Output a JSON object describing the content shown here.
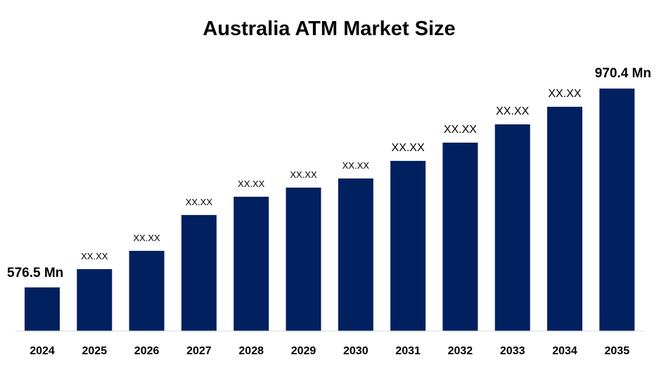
{
  "chart_data": {
    "type": "bar",
    "title": "Australia ATM Market Size",
    "xlabel": "",
    "ylabel": "",
    "categories": [
      "2024",
      "2025",
      "2026",
      "2027",
      "2028",
      "2029",
      "2030",
      "2031",
      "2032",
      "2033",
      "2034",
      "2035"
    ],
    "values": [
      576.5,
      612.7,
      648.9,
      719.9,
      756.1,
      774.2,
      792.3,
      827.1,
      863.3,
      899.5,
      934.3,
      970.4
    ],
    "data_labels": [
      "576.5 Mn",
      "XX.XX",
      "XX.XX",
      "XX.XX",
      "XX.XX",
      "XX.XX",
      "XX.XX",
      "XX.XX",
      "XX.XX",
      "XX.XX",
      "XX.XX",
      "970.4 Mn"
    ],
    "ylim": [
      490,
      975
    ],
    "grid": false,
    "bar_color": "#002060"
  }
}
